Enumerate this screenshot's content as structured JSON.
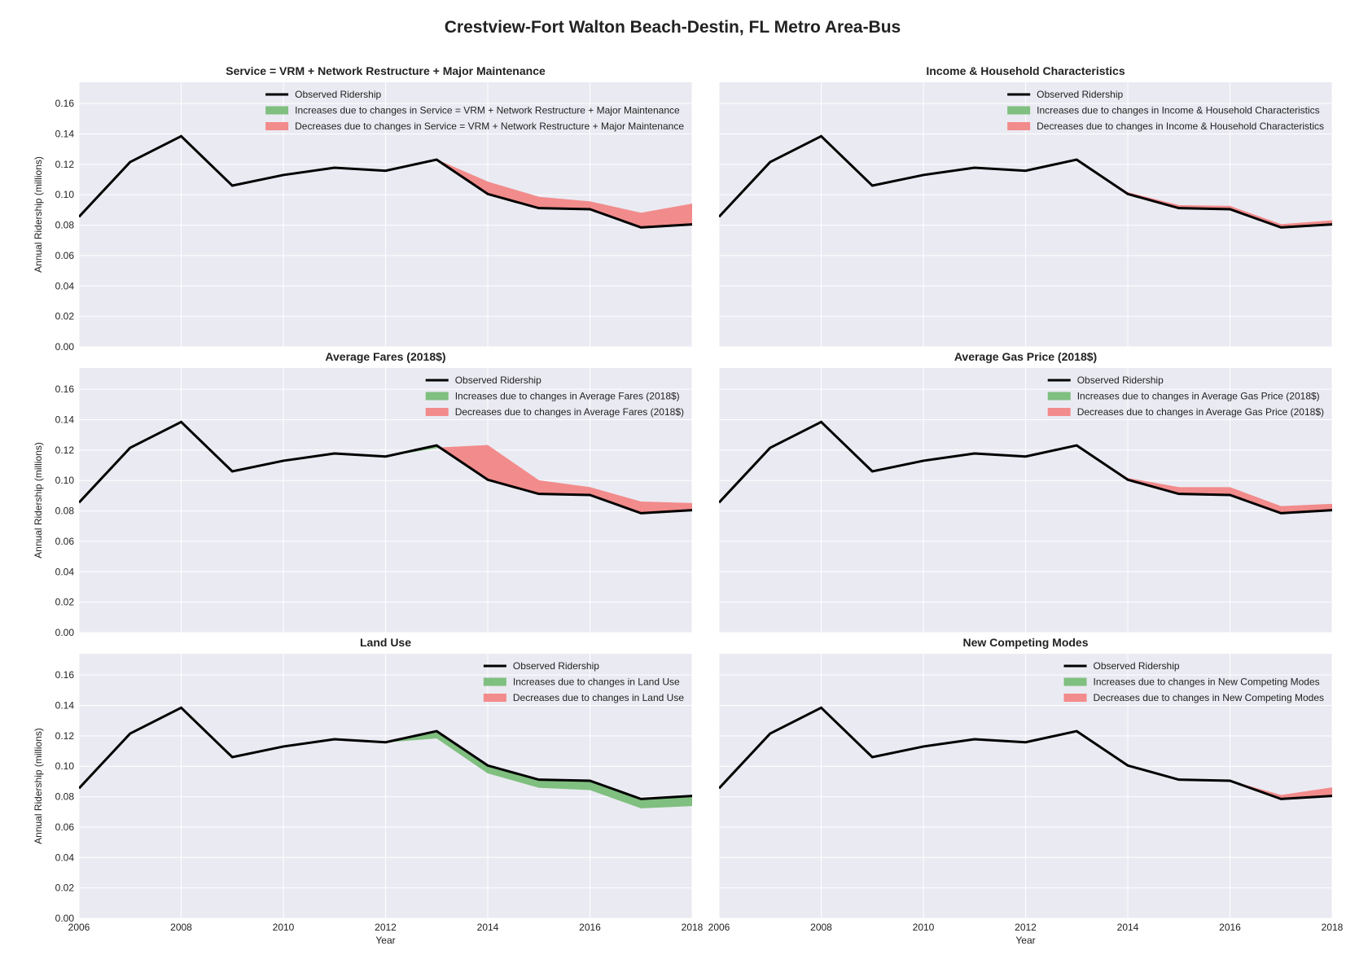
{
  "figure": {
    "title": "Crestview-Fort Walton Beach-Destin, FL Metro Area-Bus",
    "colors": {
      "background": "#eaeaf2",
      "grid": "#ffffff",
      "observed": "#000000",
      "increase": "#7fbf7f",
      "decrease": "#f28b8b"
    }
  },
  "chart_data": [
    {
      "type": "line",
      "title": "Service = VRM + Network Restructure + Major Maintenance",
      "xlabel": "",
      "ylabel": "Annual Ridership (millions)",
      "xlim": [
        2006,
        2018
      ],
      "ylim": [
        0,
        0.174
      ],
      "xticks": [
        "2006",
        "2008",
        "2010",
        "2012",
        "2014",
        "2016",
        "2018"
      ],
      "yticks": [
        "0.00",
        "0.02",
        "0.04",
        "0.06",
        "0.08",
        "0.10",
        "0.12",
        "0.14",
        "0.16"
      ],
      "grid": true,
      "legend": {
        "position": "top-right",
        "observed": "Observed Ridership",
        "increase": "Increases due to changes in Service = VRM + Network Restructure + Major Maintenance",
        "decrease": "Decreases due to changes in Service = VRM + Network Restructure + Major Maintenance"
      },
      "x": [
        2006,
        2007,
        2008,
        2009,
        2010,
        2011,
        2012,
        2013,
        2014,
        2015,
        2016,
        2017,
        2018
      ],
      "observed": [
        0.0855,
        0.1215,
        0.1385,
        0.106,
        0.113,
        0.1178,
        0.1158,
        0.1231,
        0.1005,
        0.0912,
        0.0905,
        0.0785,
        0.0805
      ],
      "counterfactual": [
        0.0855,
        0.1215,
        0.1385,
        0.106,
        0.113,
        0.1178,
        0.1158,
        0.1231,
        0.1085,
        0.0985,
        0.0955,
        0.088,
        0.094
      ]
    },
    {
      "type": "line",
      "title": "Income & Household Characteristics",
      "xlabel": "",
      "ylabel": "",
      "xlim": [
        2006,
        2018
      ],
      "ylim": [
        0,
        0.174
      ],
      "xticks": [
        "2006",
        "2008",
        "2010",
        "2012",
        "2014",
        "2016",
        "2018"
      ],
      "yticks": [
        "0.00",
        "0.02",
        "0.04",
        "0.06",
        "0.08",
        "0.10",
        "0.12",
        "0.14",
        "0.16"
      ],
      "grid": true,
      "legend": {
        "position": "top-right",
        "observed": "Observed Ridership",
        "increase": "Increases due to changes in Income & Household Characteristics",
        "decrease": "Decreases due to changes in Income & Household Characteristics"
      },
      "x": [
        2006,
        2007,
        2008,
        2009,
        2010,
        2011,
        2012,
        2013,
        2014,
        2015,
        2016,
        2017,
        2018
      ],
      "observed": [
        0.0855,
        0.1215,
        0.1385,
        0.106,
        0.113,
        0.1178,
        0.1158,
        0.1231,
        0.1005,
        0.0912,
        0.0905,
        0.0785,
        0.0805
      ],
      "counterfactual": [
        0.0855,
        0.1215,
        0.1385,
        0.106,
        0.113,
        0.1178,
        0.1158,
        0.1231,
        0.1015,
        0.093,
        0.0925,
        0.0805,
        0.083
      ]
    },
    {
      "type": "line",
      "title": "Average Fares (2018$)",
      "xlabel": "",
      "ylabel": "Annual Ridership (millions)",
      "xlim": [
        2006,
        2018
      ],
      "ylim": [
        0,
        0.174
      ],
      "xticks": [
        "2006",
        "2008",
        "2010",
        "2012",
        "2014",
        "2016",
        "2018"
      ],
      "yticks": [
        "0.00",
        "0.02",
        "0.04",
        "0.06",
        "0.08",
        "0.10",
        "0.12",
        "0.14",
        "0.16"
      ],
      "grid": true,
      "legend": {
        "position": "top-right",
        "observed": "Observed Ridership",
        "increase": "Increases due to changes in Average Fares (2018$)",
        "decrease": "Decreases due to changes in Average Fares (2018$)"
      },
      "x": [
        2006,
        2007,
        2008,
        2009,
        2010,
        2011,
        2012,
        2013,
        2014,
        2015,
        2016,
        2017,
        2018
      ],
      "observed": [
        0.0855,
        0.1215,
        0.1385,
        0.106,
        0.113,
        0.1178,
        0.1158,
        0.1231,
        0.1005,
        0.0912,
        0.0905,
        0.0785,
        0.0805
      ],
      "counterfactual": [
        0.0855,
        0.1215,
        0.1385,
        0.106,
        0.113,
        0.1178,
        0.1158,
        0.1215,
        0.1232,
        0.1,
        0.0955,
        0.086,
        0.085
      ]
    },
    {
      "type": "line",
      "title": "Average Gas Price (2018$)",
      "xlabel": "",
      "ylabel": "",
      "xlim": [
        2006,
        2018
      ],
      "ylim": [
        0,
        0.174
      ],
      "xticks": [
        "2006",
        "2008",
        "2010",
        "2012",
        "2014",
        "2016",
        "2018"
      ],
      "yticks": [
        "0.00",
        "0.02",
        "0.04",
        "0.06",
        "0.08",
        "0.10",
        "0.12",
        "0.14",
        "0.16"
      ],
      "grid": true,
      "legend": {
        "position": "top-right",
        "observed": "Observed Ridership",
        "increase": "Increases due to changes in Average Gas Price (2018$)",
        "decrease": "Decreases due to changes in Average Gas Price (2018$)"
      },
      "x": [
        2006,
        2007,
        2008,
        2009,
        2010,
        2011,
        2012,
        2013,
        2014,
        2015,
        2016,
        2017,
        2018
      ],
      "observed": [
        0.0855,
        0.1215,
        0.1385,
        0.106,
        0.113,
        0.1178,
        0.1158,
        0.1231,
        0.1005,
        0.0912,
        0.0905,
        0.0785,
        0.0805
      ],
      "counterfactual": [
        0.0855,
        0.1215,
        0.1385,
        0.106,
        0.113,
        0.1178,
        0.1158,
        0.1231,
        0.1015,
        0.0955,
        0.0955,
        0.083,
        0.0845
      ]
    },
    {
      "type": "line",
      "title": "Land Use",
      "xlabel": "Year",
      "ylabel": "Annual Ridership (millions)",
      "xlim": [
        2006,
        2018
      ],
      "ylim": [
        0,
        0.174
      ],
      "xticks": [
        "2006",
        "2008",
        "2010",
        "2012",
        "2014",
        "2016",
        "2018"
      ],
      "yticks": [
        "0.00",
        "0.02",
        "0.04",
        "0.06",
        "0.08",
        "0.10",
        "0.12",
        "0.14",
        "0.16"
      ],
      "grid": true,
      "legend": {
        "position": "top-right",
        "observed": "Observed Ridership",
        "increase": "Increases due to changes in Land Use",
        "decrease": "Decreases due to changes in Land Use"
      },
      "x": [
        2006,
        2007,
        2008,
        2009,
        2010,
        2011,
        2012,
        2013,
        2014,
        2015,
        2016,
        2017,
        2018
      ],
      "observed": [
        0.0855,
        0.1215,
        0.1385,
        0.106,
        0.113,
        0.1178,
        0.1158,
        0.1231,
        0.1005,
        0.0912,
        0.0905,
        0.0785,
        0.0805
      ],
      "counterfactual": [
        0.0855,
        0.1215,
        0.1385,
        0.106,
        0.113,
        0.1178,
        0.1158,
        0.1185,
        0.0955,
        0.086,
        0.0845,
        0.0725,
        0.074
      ]
    },
    {
      "type": "line",
      "title": "New Competing Modes",
      "xlabel": "Year",
      "ylabel": "",
      "xlim": [
        2006,
        2018
      ],
      "ylim": [
        0,
        0.174
      ],
      "xticks": [
        "2006",
        "2008",
        "2010",
        "2012",
        "2014",
        "2016",
        "2018"
      ],
      "yticks": [
        "0.00",
        "0.02",
        "0.04",
        "0.06",
        "0.08",
        "0.10",
        "0.12",
        "0.14",
        "0.16"
      ],
      "grid": true,
      "legend": {
        "position": "top-right",
        "observed": "Observed Ridership",
        "increase": "Increases due to changes in New Competing Modes",
        "decrease": "Decreases due to changes in New Competing Modes"
      },
      "x": [
        2006,
        2007,
        2008,
        2009,
        2010,
        2011,
        2012,
        2013,
        2014,
        2015,
        2016,
        2017,
        2018
      ],
      "observed": [
        0.0855,
        0.1215,
        0.1385,
        0.106,
        0.113,
        0.1178,
        0.1158,
        0.1231,
        0.1005,
        0.0912,
        0.0905,
        0.0785,
        0.0805
      ],
      "counterfactual": [
        0.0855,
        0.1215,
        0.1385,
        0.106,
        0.113,
        0.1178,
        0.1158,
        0.1231,
        0.1005,
        0.0912,
        0.0905,
        0.081,
        0.086
      ]
    }
  ]
}
